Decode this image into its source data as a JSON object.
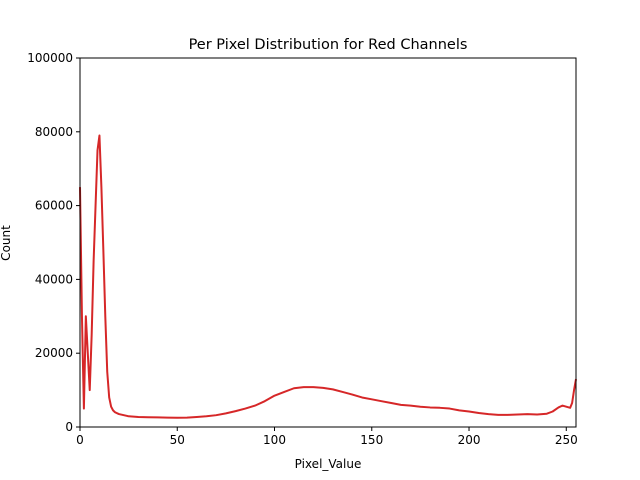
{
  "chart_data": {
    "type": "line",
    "title": "Per Pixel Distribution for Red Channels",
    "xlabel": "Pixel_Value",
    "ylabel": "Count",
    "xlim": [
      0,
      255
    ],
    "ylim": [
      0,
      100000
    ],
    "x_ticks": [
      0,
      50,
      100,
      150,
      200,
      250
    ],
    "y_ticks": [
      0,
      20000,
      40000,
      60000,
      80000,
      100000
    ],
    "x_tick_labels": [
      "0",
      "50",
      "100",
      "150",
      "200",
      "250"
    ],
    "y_tick_labels": [
      "0",
      "20000",
      "40000",
      "60000",
      "80000",
      "100000"
    ],
    "grid": false,
    "series": [
      {
        "color": "#d62728",
        "x": [
          0,
          1,
          2,
          3,
          4,
          5,
          6,
          7,
          8,
          9,
          10,
          11,
          12,
          13,
          14,
          15,
          16,
          17,
          18,
          20,
          25,
          30,
          35,
          40,
          45,
          50,
          55,
          60,
          65,
          70,
          75,
          80,
          85,
          90,
          95,
          100,
          105,
          110,
          115,
          120,
          125,
          130,
          135,
          140,
          145,
          150,
          155,
          160,
          165,
          170,
          175,
          180,
          185,
          190,
          195,
          200,
          205,
          210,
          215,
          220,
          225,
          230,
          235,
          240,
          243,
          246,
          248,
          250,
          252,
          253,
          254,
          255
        ],
        "y": [
          65000,
          30000,
          5000,
          30000,
          20000,
          10000,
          25000,
          45000,
          60000,
          75000,
          79000,
          65000,
          48000,
          30000,
          15000,
          8000,
          5500,
          4500,
          4000,
          3500,
          2900,
          2700,
          2650,
          2600,
          2550,
          2500,
          2550,
          2700,
          2900,
          3200,
          3700,
          4300,
          5000,
          5800,
          7000,
          8500,
          9500,
          10500,
          10800,
          10800,
          10600,
          10200,
          9500,
          8800,
          8000,
          7500,
          7000,
          6500,
          6000,
          5800,
          5500,
          5300,
          5200,
          5000,
          4500,
          4200,
          3800,
          3500,
          3300,
          3300,
          3400,
          3500,
          3400,
          3600,
          4200,
          5300,
          5800,
          5500,
          5200,
          6500,
          10000,
          13000
        ]
      }
    ]
  }
}
